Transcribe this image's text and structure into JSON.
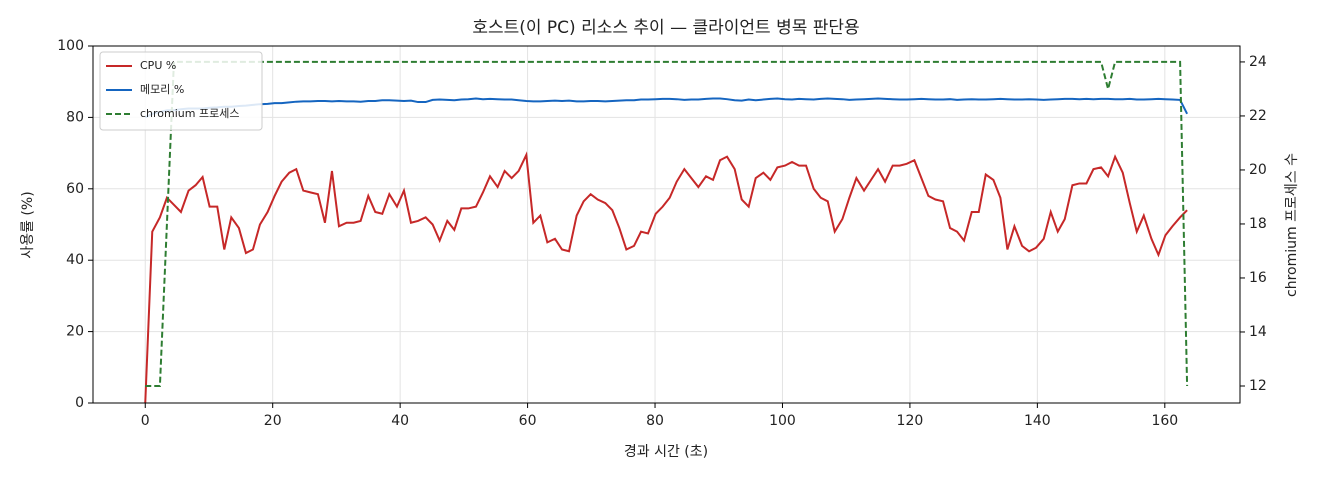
{
  "chart_data": {
    "type": "line",
    "title": "호스트(이 PC) 리소스 추이 — 클라이언트 병목 판단용",
    "xlabel": "경과 시간 (초)",
    "ylabel": "사용률 (%)",
    "y2label": "chromium 프로세스 수",
    "x": [
      0,
      1.1,
      2.3,
      3.4,
      4.5,
      5.6,
      6.8,
      7.9,
      9.0,
      10.1,
      11.3,
      12.4,
      13.5,
      14.7,
      15.8,
      16.9,
      18.0,
      19.2,
      20.3,
      21.4,
      22.6,
      23.7,
      24.8,
      25.9,
      27.1,
      28.2,
      29.3,
      30.4,
      31.6,
      32.7,
      33.8,
      35.0,
      36.1,
      37.2,
      38.3,
      39.5,
      40.6,
      41.7,
      42.8,
      44.0,
      45.1,
      46.2,
      47.4,
      48.5,
      49.6,
      50.7,
      51.9,
      53.0,
      54.1,
      55.3,
      56.4,
      57.5,
      58.6,
      59.8,
      60.9,
      62.0,
      63.1,
      64.3,
      65.4,
      66.5,
      67.7,
      68.8,
      69.9,
      71.0,
      72.2,
      73.3,
      74.4,
      75.5,
      76.7,
      77.8,
      78.9,
      80.1,
      81.2,
      82.3,
      83.4,
      84.6,
      85.7,
      86.8,
      88.0,
      89.1,
      90.2,
      91.3,
      92.5,
      93.6,
      94.7,
      95.8,
      97.0,
      98.1,
      99.2,
      100.4,
      101.5,
      102.6,
      103.7,
      104.9,
      106.0,
      107.1,
      108.2,
      109.4,
      110.5,
      111.6,
      112.8,
      113.9,
      115.0,
      116.1,
      117.3,
      118.4,
      119.5,
      120.7,
      121.8,
      122.9,
      124.0,
      125.2,
      126.3,
      127.4,
      128.5,
      129.7,
      130.8,
      131.9,
      133.1,
      134.2,
      135.3,
      136.4,
      137.6,
      138.7,
      139.8,
      141.0,
      142.1,
      143.2,
      144.3,
      145.5,
      146.6,
      147.7,
      148.8,
      150.0,
      151.1,
      152.2,
      153.4,
      154.5,
      155.6,
      156.7,
      157.9,
      159.0,
      160.1,
      161.2,
      162.4,
      163.5
    ],
    "series": [
      {
        "name": "CPU %",
        "color": "#c62828",
        "style": "solid",
        "values": [
          0,
          48,
          52,
          57.5,
          55.5,
          53.5,
          59.5,
          61,
          63.3,
          55,
          55,
          43,
          52,
          49,
          42,
          43,
          50,
          53.5,
          58,
          62,
          64.5,
          65.5,
          59.5,
          59,
          58.5,
          50.5,
          65,
          49.5,
          50.5,
          50.5,
          51,
          58,
          53.5,
          53,
          58.5,
          55,
          59.5,
          50.5,
          51,
          52,
          50,
          45.5,
          51,
          48.5,
          54.5,
          54.5,
          55,
          59,
          63.5,
          60.5,
          65,
          63,
          65,
          69.5,
          50.5,
          52.5,
          45,
          46,
          43,
          42.5,
          52.5,
          56.5,
          58.5,
          57,
          56,
          54,
          49,
          43,
          44,
          48,
          47.5,
          53,
          55,
          57.5,
          62,
          65.5,
          63,
          60.5,
          63.5,
          62.5,
          68,
          69,
          65.5,
          57,
          55,
          63,
          64.5,
          62.5,
          66,
          66.5,
          67.5,
          66.5,
          66.5,
          60,
          57.5,
          56.5,
          48,
          51.5,
          57.5,
          63,
          59.5,
          62.5,
          65.5,
          62,
          66.5,
          66.5,
          67,
          68,
          63,
          58,
          57,
          56.5,
          49,
          48,
          45.5,
          53.5,
          53.5,
          64,
          62.5,
          57.5,
          43,
          49.5,
          44,
          42.5,
          43.5,
          46,
          53.5,
          48,
          51.5,
          61,
          61.5,
          61.5,
          65.5,
          66,
          63.5,
          69,
          64.5,
          56,
          48,
          52.5,
          46,
          41.5,
          47,
          49.5,
          52,
          54
        ]
      },
      {
        "name": "메모리 %",
        "color": "#1565c0",
        "style": "solid",
        "values": [
          80,
          81,
          81.5,
          82,
          82,
          82.3,
          82.5,
          82.5,
          82.5,
          82.7,
          82.8,
          83,
          83,
          83.2,
          83.3,
          83.5,
          83.7,
          83.8,
          84,
          84,
          84.2,
          84.4,
          84.5,
          84.5,
          84.6,
          84.6,
          84.5,
          84.6,
          84.5,
          84.5,
          84.4,
          84.6,
          84.6,
          84.8,
          84.8,
          84.7,
          84.6,
          84.7,
          84.3,
          84.3,
          84.9,
          85,
          84.9,
          84.8,
          85,
          85.1,
          85.3,
          85.1,
          85.2,
          85.1,
          85,
          85,
          84.8,
          84.6,
          84.5,
          84.5,
          84.6,
          84.7,
          84.6,
          84.7,
          84.5,
          84.5,
          84.6,
          84.6,
          84.5,
          84.6,
          84.7,
          84.8,
          84.8,
          85,
          85,
          85.1,
          85.2,
          85.2,
          85.1,
          84.9,
          85,
          85,
          85.2,
          85.3,
          85.3,
          85.1,
          84.8,
          84.7,
          85,
          84.8,
          85,
          85.2,
          85.3,
          85.1,
          85,
          85.2,
          85.1,
          85,
          85.2,
          85.3,
          85.2,
          85.1,
          84.9,
          85,
          85.1,
          85.2,
          85.3,
          85.2,
          85.1,
          85,
          85,
          85.1,
          85.2,
          85.1,
          85,
          85,
          85.1,
          84.9,
          85,
          85.1,
          85,
          85,
          85.1,
          85.2,
          85.1,
          85,
          85,
          85.1,
          85,
          84.9,
          85,
          85.1,
          85.2,
          85.2,
          85.1,
          85.2,
          85.1,
          85.2,
          85.2,
          85.1,
          85.1,
          85.2,
          85,
          85,
          85.1,
          85.2,
          85.1,
          85,
          84.9,
          81
        ]
      },
      {
        "name": "chromium 프로세스",
        "color": "#2e7d32",
        "style": "dashed",
        "axis": "y2",
        "values": [
          12,
          12,
          12,
          18,
          24,
          24,
          24,
          24,
          24,
          24,
          24,
          24,
          24,
          24,
          24,
          24,
          24,
          24,
          24,
          24,
          24,
          24,
          24,
          24,
          24,
          24,
          24,
          24,
          24,
          24,
          24,
          24,
          24,
          24,
          24,
          24,
          24,
          24,
          24,
          24,
          24,
          24,
          24,
          24,
          24,
          24,
          24,
          24,
          24,
          24,
          24,
          24,
          24,
          24,
          24,
          24,
          24,
          24,
          24,
          24,
          24,
          24,
          24,
          24,
          24,
          24,
          24,
          24,
          24,
          24,
          24,
          24,
          24,
          24,
          24,
          24,
          24,
          24,
          24,
          24,
          24,
          24,
          24,
          24,
          24,
          24,
          24,
          24,
          24,
          24,
          24,
          24,
          24,
          24,
          24,
          24,
          24,
          24,
          24,
          24,
          24,
          24,
          24,
          24,
          24,
          24,
          24,
          24,
          24,
          24,
          24,
          24,
          24,
          24,
          24,
          24,
          24,
          24,
          24,
          24,
          24,
          24,
          24,
          24,
          24,
          24,
          24,
          24,
          24,
          24,
          24,
          24,
          24,
          24,
          23,
          24,
          24,
          24,
          24,
          24,
          24,
          24,
          24,
          24,
          24,
          12
        ]
      }
    ],
    "xlim": [
      -8.2,
      171.8
    ],
    "xticks": [
      0,
      20,
      40,
      60,
      80,
      100,
      120,
      140,
      160
    ],
    "ylim": [
      0,
      100
    ],
    "yticks": [
      0,
      20,
      40,
      60,
      80,
      100
    ],
    "y2lim": [
      11.37,
      24.59
    ],
    "y2ticks": [
      12,
      14,
      16,
      18,
      20,
      22,
      24
    ],
    "grid": true,
    "legend": "upper-left"
  }
}
